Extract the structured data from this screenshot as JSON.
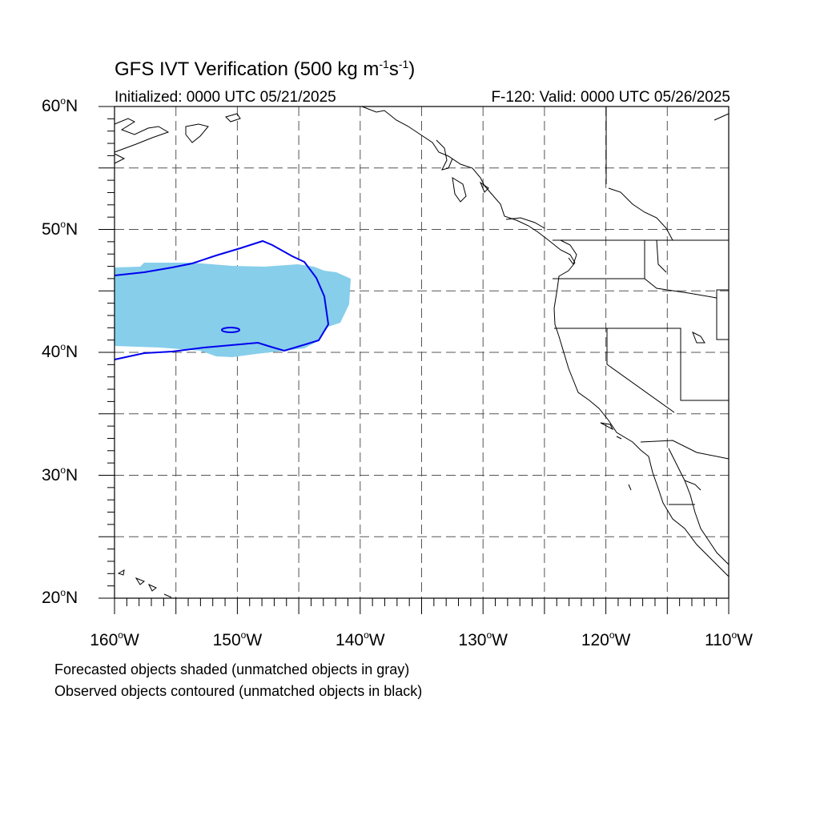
{
  "title": {
    "main": "GFS IVT Verification (500 kg m",
    "exp1": "-1",
    "mid": "s",
    "exp2": "-1",
    "close": ")"
  },
  "subtitle": {
    "initialized": "Initialized: 0000 UTC 05/21/2025",
    "valid": "F-120: Valid: 0000 UTC 05/26/2025"
  },
  "axes": {
    "lat_labels": [
      {
        "value": 60,
        "num": "60",
        "deg": "o",
        "hemi": "N"
      },
      {
        "value": 50,
        "num": "50",
        "deg": "o",
        "hemi": "N"
      },
      {
        "value": 40,
        "num": "40",
        "deg": "o",
        "hemi": "N"
      },
      {
        "value": 30,
        "num": "30",
        "deg": "o",
        "hemi": "N"
      },
      {
        "value": 20,
        "num": "20",
        "deg": "o",
        "hemi": "N"
      }
    ],
    "lon_labels": [
      {
        "value": -160,
        "num": "160",
        "deg": "o",
        "hemi": "W"
      },
      {
        "value": -150,
        "num": "150",
        "deg": "o",
        "hemi": "W"
      },
      {
        "value": -140,
        "num": "140",
        "deg": "o",
        "hemi": "W"
      },
      {
        "value": -130,
        "num": "130",
        "deg": "o",
        "hemi": "W"
      },
      {
        "value": -120,
        "num": "120",
        "deg": "o",
        "hemi": "W"
      },
      {
        "value": -110,
        "num": "110",
        "deg": "o",
        "hemi": "W"
      }
    ],
    "lat_range": [
      20,
      60
    ],
    "lon_range": [
      -160,
      -110
    ],
    "grid_interval_deg": 5,
    "grid_style": "dashed"
  },
  "objects": {
    "forecast_color": "#87ceeb",
    "observed_color": "#0000ee",
    "coast_color": "#000000"
  },
  "footnotes": {
    "line1": "Forecasted objects shaded (unmatched objects in gray)",
    "line2": "Observed objects contoured (unmatched objects in black)"
  }
}
